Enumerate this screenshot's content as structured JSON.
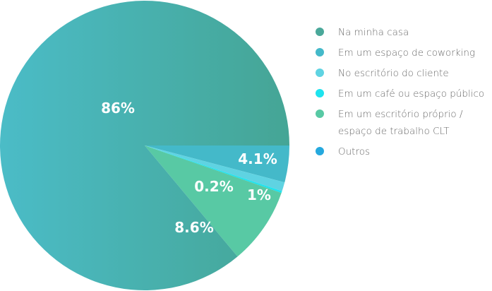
{
  "chart_data": {
    "type": "pie",
    "slices": [
      {
        "label": "Na minha casa",
        "value": 86,
        "display": "86%",
        "color": "#4aa89a"
      },
      {
        "label": "Em um espaço de coworking",
        "value": 4.1,
        "display": "4.1%",
        "color": "#44b9c9"
      },
      {
        "label": "No escritório do cliente",
        "value": 1,
        "display": "1%",
        "color": "#5fd3e2"
      },
      {
        "label": "Em um café ou espaço público",
        "value": 0.2,
        "display": "0.2%",
        "color": "#1ee3ee"
      },
      {
        "label": "Em um escritório próprio / espaço de trabalho CLT",
        "value": 8.6,
        "display": "8.6%",
        "color": "#58c9a4"
      },
      {
        "label": "Outros",
        "value": 0,
        "display": "",
        "color": "#25a9de"
      }
    ],
    "legend_position": "right"
  },
  "legend": {
    "items": [
      {
        "lines": [
          "Na minha casa"
        ],
        "color": "#4aa89a"
      },
      {
        "lines": [
          "Em um espaço de coworking"
        ],
        "color": "#44b9c9"
      },
      {
        "lines": [
          "No escritório do cliente"
        ],
        "color": "#5fd3e2"
      },
      {
        "lines": [
          "Em um café ou espaço público"
        ],
        "color": "#1ee3ee"
      },
      {
        "lines": [
          "Em um escritório próprio /",
          "espaço de trabalho CLT"
        ],
        "color": "#58c9a4"
      },
      {
        "lines": [
          "Outros"
        ],
        "color": "#25a9de"
      }
    ]
  }
}
